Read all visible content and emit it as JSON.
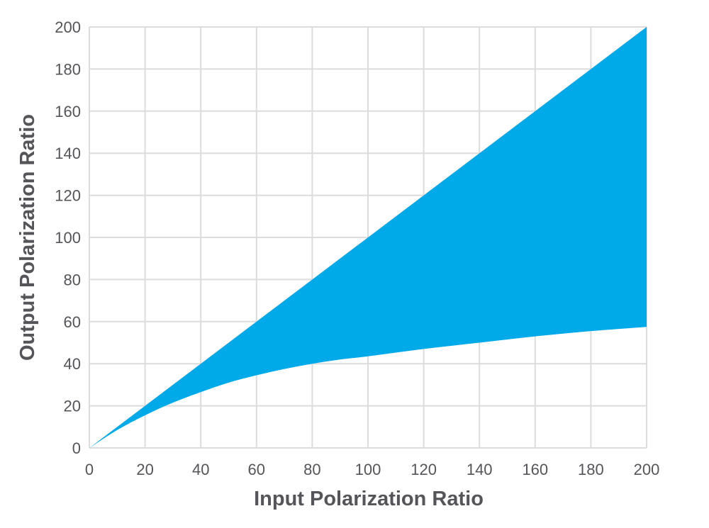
{
  "chart_data": {
    "type": "area",
    "title": "",
    "xlabel": "Input Polarization Ratio",
    "ylabel": "Output Polarization Ratio",
    "xlim": [
      0,
      200
    ],
    "ylim": [
      0,
      200
    ],
    "x_ticks": [
      0,
      20,
      40,
      60,
      80,
      100,
      120,
      140,
      160,
      180,
      200
    ],
    "y_ticks": [
      0,
      20,
      40,
      60,
      80,
      100,
      120,
      140,
      160,
      180,
      200
    ],
    "grid": true,
    "fill_color": "#00a9e8",
    "series": [
      {
        "role": "upper",
        "x": [
          0,
          200
        ],
        "values": [
          0,
          200
        ]
      },
      {
        "role": "lower",
        "x": [
          0,
          10,
          20,
          30,
          40,
          50,
          60,
          70,
          80,
          90,
          100,
          120,
          140,
          160,
          180,
          200
        ],
        "values": [
          0,
          8.5,
          15.5,
          21.5,
          26.5,
          31,
          34.5,
          37.5,
          40,
          42,
          43.5,
          47,
          50,
          53,
          55.5,
          57.5
        ]
      }
    ]
  }
}
